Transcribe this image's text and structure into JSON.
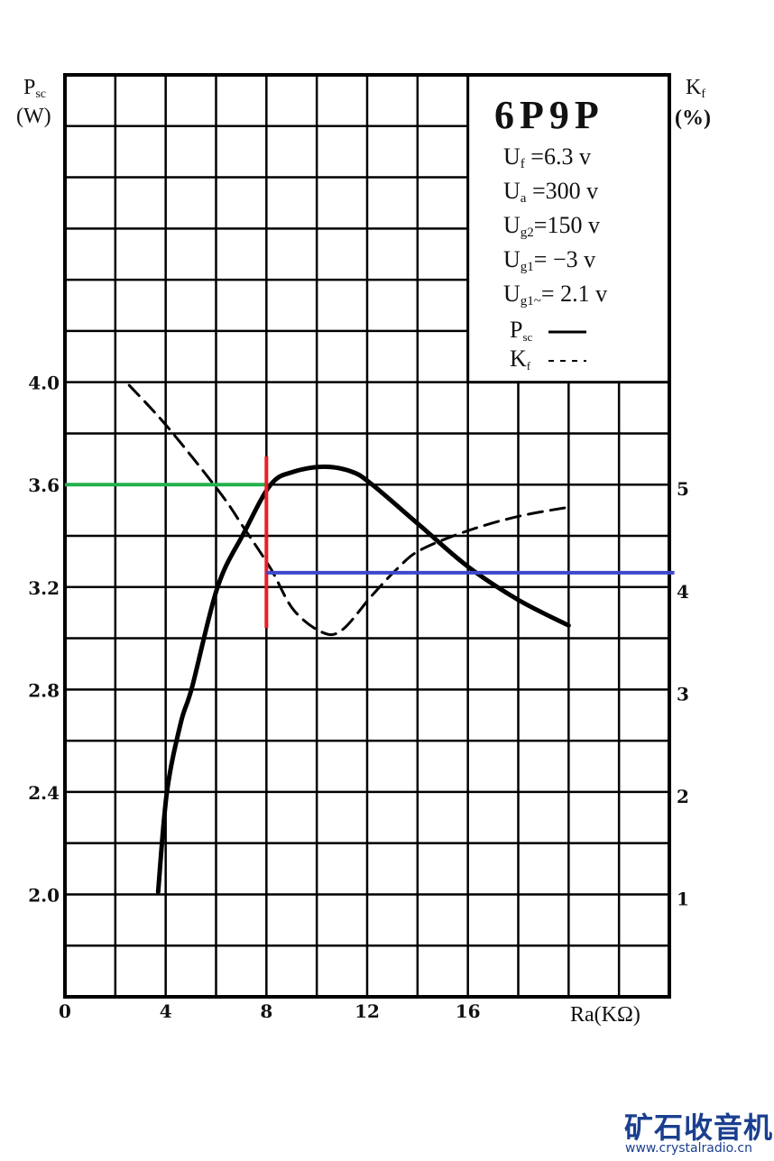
{
  "chart_data": {
    "type": "line",
    "title": "6P9P",
    "xlabel": "Ra(KΩ)",
    "ylabel": "Psc (W)",
    "ylabel_left": {
      "main": "P",
      "sub": "sc",
      "unit": "(W)"
    },
    "ylabel_right": {
      "main": "K",
      "sub": "f",
      "unit": "(%)",
      "text": "Kf (%)"
    },
    "xlim": [
      0,
      24
    ],
    "ylim": [
      1.6,
      5.2
    ],
    "y2lim": [
      0,
      9
    ],
    "grid": true,
    "grid_step": {
      "x": 2,
      "y": 0.2
    },
    "x_ticks": [
      "0",
      "4",
      "8",
      "12",
      "16"
    ],
    "x_tick_values": [
      0,
      4,
      8,
      12,
      16
    ],
    "y_ticks": [
      "4.0",
      "3.6",
      "3.2",
      "2.8",
      "2.4",
      "2.0"
    ],
    "y_tick_values": [
      4.0,
      3.6,
      3.2,
      2.8,
      2.4,
      2.0
    ],
    "y2_ticks": [
      "5",
      "4",
      "3",
      "2",
      "1"
    ],
    "y2_tick_values": [
      5,
      4,
      3,
      2,
      1
    ],
    "legend": {
      "placement": "top-right",
      "conditions": [
        {
          "main": "U",
          "sub": "f",
          "rest": " =6.3 v"
        },
        {
          "main": "U",
          "sub": "a",
          "rest": " =300 v"
        },
        {
          "main": "U",
          "sub": "g2",
          "rest": "=150 v"
        },
        {
          "main": "U",
          "sub": "g1",
          "rest": "= −3 v"
        },
        {
          "main": "U",
          "sub": "g1~",
          "rest": "= 2.1 v"
        }
      ],
      "series_keys": [
        {
          "main": "P",
          "sub": "sc",
          "style": "solid"
        },
        {
          "main": "K",
          "sub": "f",
          "style": "dashed"
        }
      ]
    },
    "series": [
      {
        "name": "Psc",
        "axis": "left",
        "style": "solid",
        "color": "#000000",
        "x": [
          3.7,
          4.05,
          4.6,
          5.05,
          6.06,
          7.1,
          8.17,
          9.07,
          10.3,
          11.4,
          12.2,
          14.1,
          16,
          18,
          20
        ],
        "y": [
          2.01,
          2.4,
          2.67,
          2.81,
          3.2,
          3.41,
          3.6,
          3.65,
          3.67,
          3.65,
          3.6,
          3.44,
          3.28,
          3.15,
          3.05
        ]
      },
      {
        "name": "Kf",
        "axis": "right",
        "style": "dashed",
        "color": "#000000",
        "x": [
          2.55,
          4.05,
          6.13,
          7.1,
          8.17,
          9.07,
          10.2,
          11.0,
          12.2,
          13.2,
          14.1,
          16,
          18,
          20
        ],
        "y": [
          5.97,
          5.57,
          4.93,
          4.58,
          4.18,
          3.78,
          3.56,
          3.58,
          3.92,
          4.18,
          4.36,
          4.55,
          4.69,
          4.78
        ]
      }
    ],
    "annotations": [
      {
        "kind": "hline",
        "axis": "left",
        "y": 3.6,
        "x_from": 0,
        "x_to": 8,
        "color": "#22b14c"
      },
      {
        "kind": "vline",
        "x": 8,
        "y_from": 3.04,
        "y_to": 3.71,
        "color": "#ed1c24"
      },
      {
        "kind": "hline",
        "axis": "right",
        "y": 4.14,
        "x_from": 8,
        "x_to": 24.2,
        "color": "#3f48cc"
      }
    ]
  },
  "watermark": {
    "cn": "矿石收音机",
    "url": "www.crystalradio.cn",
    "color": "#1a3f8f"
  }
}
